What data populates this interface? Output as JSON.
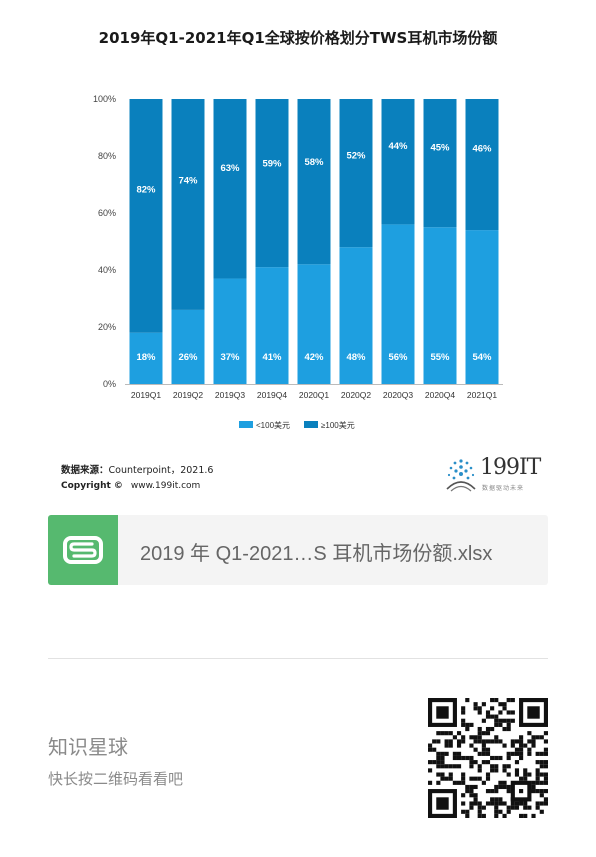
{
  "title": "2019年Q1-2021年Q1全球按价格划分TWS耳机市场份额",
  "chart_data": {
    "type": "bar",
    "stacked": true,
    "title": "2019年Q1-2021年Q1全球按价格划分TWS耳机市场份额",
    "categories": [
      "2019Q1",
      "2019Q2",
      "2019Q3",
      "2019Q4",
      "2020Q1",
      "2020Q2",
      "2020Q3",
      "2020Q4",
      "2021Q1"
    ],
    "series": [
      {
        "name": "<100美元",
        "color": "#1e9fe0",
        "values": [
          18,
          26,
          37,
          41,
          42,
          48,
          56,
          55,
          54
        ]
      },
      {
        "name": "≥100美元",
        "color": "#0a80bd",
        "values": [
          82,
          74,
          63,
          59,
          58,
          52,
          44,
          45,
          46
        ]
      }
    ],
    "ylim": [
      0,
      100
    ],
    "yticks": [
      "0%",
      "20%",
      "40%",
      "60%",
      "80%",
      "100%"
    ],
    "data_label_suffix": "%",
    "grid": false,
    "legend_position": "bottom-center"
  },
  "source": {
    "label": "数据来源：",
    "value": "Counterpoint，2021.6"
  },
  "copyright": {
    "label": "Copyright ©",
    "value": "www.199it.com"
  },
  "brand": {
    "name": "199IT",
    "tagline": "数据驱动未来"
  },
  "file": {
    "icon": "spreadsheet-s-icon",
    "name": "2019 年 Q1-2021…S 耳机市场份额.xlsx"
  },
  "promo": {
    "title": "知识星球",
    "subtitle": "快长按二维码看看吧",
    "qr_icon": "qr-code-icon"
  }
}
